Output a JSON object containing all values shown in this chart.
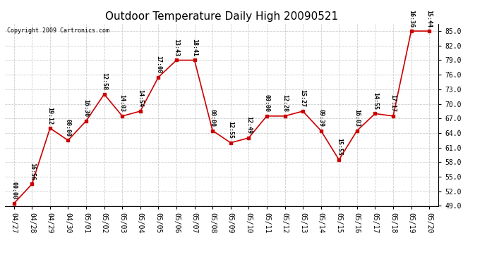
{
  "title": "Outdoor Temperature Daily High 20090521",
  "copyright": "Copyright 2009 Cartronics.com",
  "background_color": "#ffffff",
  "plot_background": "#ffffff",
  "grid_color": "#cccccc",
  "line_color": "#cc0000",
  "marker_color": "#cc0000",
  "dates": [
    "04/27",
    "04/28",
    "04/29",
    "04/30",
    "05/01",
    "05/02",
    "05/03",
    "05/04",
    "05/05",
    "05/06",
    "05/07",
    "05/08",
    "05/09",
    "05/10",
    "05/11",
    "05/12",
    "05/13",
    "05/14",
    "05/15",
    "05/16",
    "05/17",
    "05/18",
    "05/19",
    "05/20"
  ],
  "temperatures": [
    49.5,
    53.5,
    65.0,
    62.5,
    66.5,
    72.0,
    67.5,
    68.5,
    75.5,
    79.0,
    79.0,
    64.5,
    62.0,
    63.0,
    67.5,
    67.5,
    68.5,
    64.5,
    58.5,
    64.5,
    68.0,
    67.5,
    85.0,
    85.0
  ],
  "time_labels": [
    "00:00",
    "16:56",
    "19:12",
    "00:00",
    "16:36",
    "12:58",
    "14:03",
    "14:54",
    "17:00",
    "13:43",
    "18:41",
    "00:00",
    "12:55",
    "12:49",
    "00:00",
    "12:28",
    "15:27",
    "09:39",
    "15:55",
    "16:03",
    "14:55",
    "17:17",
    "16:36",
    "15:44"
  ],
  "ylim": [
    49.0,
    86.5
  ],
  "yticks": [
    49.0,
    52.0,
    55.0,
    58.0,
    61.0,
    64.0,
    67.0,
    70.0,
    73.0,
    76.0,
    79.0,
    82.0,
    85.0
  ],
  "title_fontsize": 11,
  "label_fontsize": 6,
  "tick_fontsize": 7,
  "copyright_fontsize": 6,
  "marker_size": 3,
  "line_width": 1.2
}
